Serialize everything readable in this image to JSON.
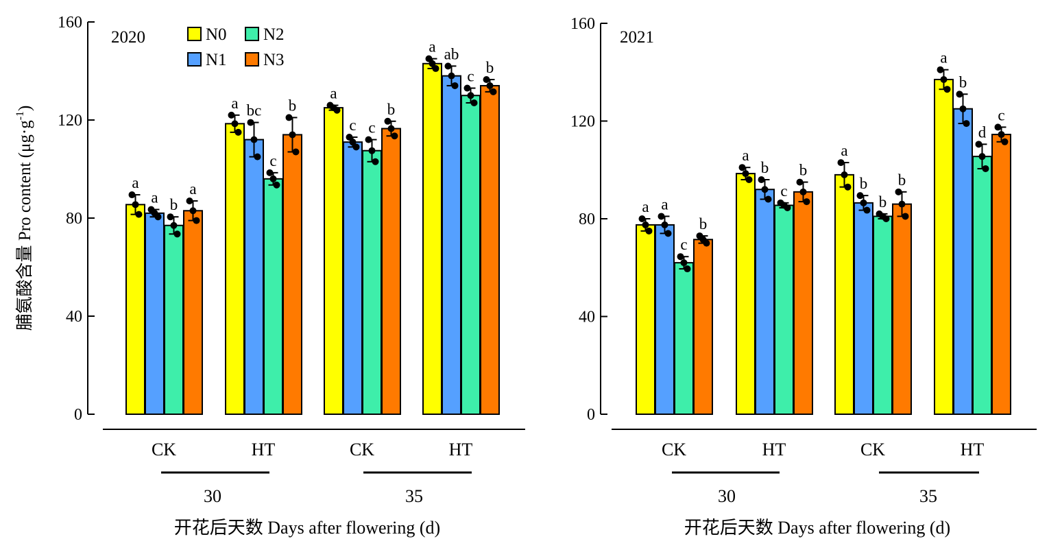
{
  "chart_data": [
    {
      "type": "bar",
      "panel_label": "2020",
      "ylabel": "脯氨酸含量 Pro content (μg·g",
      "ylabel_superscript": "-1",
      "ylabel_close": ")",
      "xlabel": "开花后天数 Days after flowering (d)",
      "ylim": [
        0,
        160
      ],
      "yticks": [
        0,
        40,
        80,
        120,
        160
      ],
      "categories": [
        "CK",
        "HT",
        "CK",
        "HT"
      ],
      "day_groups": [
        {
          "label": "30"
        },
        {
          "label": "35"
        }
      ],
      "series": [
        {
          "name": "N0",
          "values": [
            85.5,
            118.5,
            125,
            143
          ],
          "errors": [
            4,
            3.5,
            1,
            2
          ],
          "letters": [
            "a",
            "a",
            "a",
            "a"
          ]
        },
        {
          "name": "N1",
          "values": [
            82,
            112,
            111,
            138
          ],
          "errors": [
            1.5,
            7,
            2,
            4
          ],
          "letters": [
            "a",
            "bc",
            "c",
            "ab"
          ]
        },
        {
          "name": "N2",
          "values": [
            77,
            96,
            107.5,
            130
          ],
          "errors": [
            3.5,
            2.5,
            4.5,
            3
          ],
          "letters": [
            "b",
            "c",
            "c",
            "c"
          ]
        },
        {
          "name": "N3",
          "values": [
            83,
            114,
            116.5,
            134
          ],
          "errors": [
            4,
            7,
            3,
            2.5
          ],
          "letters": [
            "a",
            "b",
            "b",
            "b"
          ]
        }
      ]
    },
    {
      "type": "bar",
      "panel_label": "2021",
      "ylabel": "",
      "xlabel": "开花后天数 Days after flowering (d)",
      "ylim": [
        0,
        160
      ],
      "yticks": [
        0,
        40,
        80,
        120,
        160
      ],
      "categories": [
        "CK",
        "HT",
        "CK",
        "HT"
      ],
      "day_groups": [
        {
          "label": "30"
        },
        {
          "label": "35"
        }
      ],
      "series": [
        {
          "name": "N0",
          "values": [
            77.5,
            98.5,
            98,
            137
          ],
          "errors": [
            2.5,
            2.5,
            5,
            4
          ],
          "letters": [
            "a",
            "a",
            "a",
            "a"
          ]
        },
        {
          "name": "N1",
          "values": [
            77.5,
            92,
            86.5,
            125
          ],
          "errors": [
            3.5,
            4,
            3,
            6
          ],
          "letters": [
            "a",
            "b",
            "b",
            "b"
          ]
        },
        {
          "name": "N2",
          "values": [
            62,
            85.5,
            81,
            105.5
          ],
          "errors": [
            2.5,
            1,
            1,
            5
          ],
          "letters": [
            "c",
            "c",
            "b",
            "d"
          ]
        },
        {
          "name": "N3",
          "values": [
            71.5,
            91,
            86,
            114.5
          ],
          "errors": [
            1.5,
            4,
            5,
            3
          ],
          "letters": [
            "b",
            "b",
            "b",
            "c"
          ]
        }
      ]
    }
  ],
  "legend": [
    {
      "name": "N0",
      "color": "#FFFF00"
    },
    {
      "name": "N1",
      "color": "#55A0FF"
    },
    {
      "name": "N2",
      "color": "#3EEEAA"
    },
    {
      "name": "N3",
      "color": "#FF7A00"
    }
  ]
}
